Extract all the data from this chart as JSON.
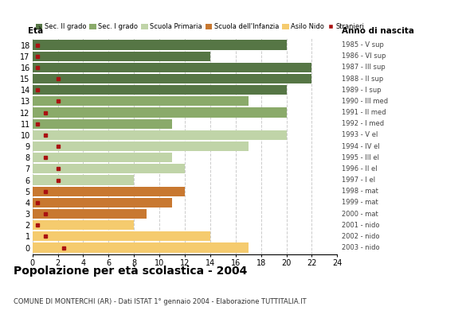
{
  "ages": [
    18,
    17,
    16,
    15,
    14,
    13,
    12,
    11,
    10,
    9,
    8,
    7,
    6,
    5,
    4,
    3,
    2,
    1,
    0
  ],
  "anno_nascita": [
    "1985 - V sup",
    "1986 - VI sup",
    "1987 - III sup",
    "1988 - II sup",
    "1989 - I sup",
    "1990 - III med",
    "1991 - II med",
    "1992 - I med",
    "1993 - V el",
    "1994 - IV el",
    "1995 - III el",
    "1996 - II el",
    "1997 - I el",
    "1998 - mat",
    "1999 - mat",
    "2000 - mat",
    "2001 - nido",
    "2002 - nido",
    "2003 - nido"
  ],
  "bar_values": [
    20,
    14,
    22,
    22,
    20,
    17,
    20,
    11,
    20,
    17,
    11,
    12,
    8,
    12,
    11,
    9,
    8,
    14,
    17
  ],
  "bar_colors": [
    "#567645",
    "#567645",
    "#567645",
    "#567645",
    "#567645",
    "#8aaa6a",
    "#8aaa6a",
    "#8aaa6a",
    "#c0d4a8",
    "#c0d4a8",
    "#c0d4a8",
    "#c0d4a8",
    "#c0d4a8",
    "#c87830",
    "#c87830",
    "#c87830",
    "#f5cb6e",
    "#f5cb6e",
    "#f5cb6e"
  ],
  "stranieri_x": [
    0.4,
    0.4,
    0.4,
    2.0,
    0.4,
    2.0,
    1.0,
    0.4,
    1.0,
    2.0,
    1.0,
    2.0,
    2.0,
    1.0,
    0.4,
    1.0,
    0.4,
    1.0,
    2.5
  ],
  "stranieri_y": [
    18,
    17,
    16,
    15,
    14,
    13,
    12,
    11,
    10,
    9,
    8,
    7,
    6,
    5,
    4,
    3,
    2,
    1,
    0
  ],
  "legend_labels": [
    "Sec. II grado",
    "Sec. I grado",
    "Scuola Primaria",
    "Scuola dell'Infanzia",
    "Asilo Nido",
    "Stranieri"
  ],
  "legend_colors": [
    "#567645",
    "#8aaa6a",
    "#c0d4a8",
    "#c87830",
    "#f5cb6e",
    "#aa1111"
  ],
  "title": "Popolazione per età scolastica - 2004",
  "subtitle": "COMUNE DI MONTERCHI (AR) - Dati ISTAT 1° gennaio 2004 - Elaborazione TUTTITALIA.IT",
  "eta_label": "Età",
  "anno_label": "Anno di nascita",
  "xlim": [
    0,
    24
  ],
  "xticks": [
    0,
    2,
    4,
    6,
    8,
    10,
    12,
    14,
    16,
    18,
    20,
    22,
    24
  ],
  "background_color": "#ffffff",
  "grid_color": "#cccccc"
}
